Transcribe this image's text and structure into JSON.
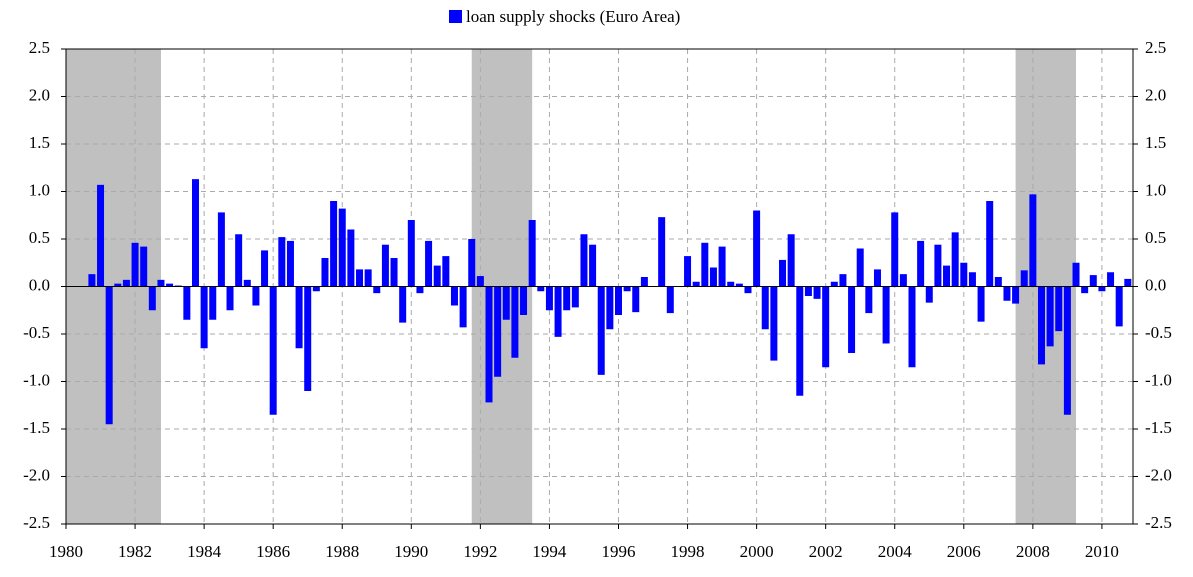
{
  "chart_data": {
    "type": "bar",
    "series": [
      {
        "name": "loan supply shocks (Euro Area)",
        "color": "#0000ff",
        "values": [
          0.13,
          1.07,
          -1.45,
          0.03,
          0.07,
          0.46,
          0.42,
          -0.25,
          0.07,
          0.03,
          0.01,
          -0.35,
          1.13,
          -0.65,
          -0.35,
          0.78,
          -0.25,
          0.55,
          0.07,
          -0.2,
          0.38,
          -1.35,
          0.52,
          0.48,
          -0.65,
          -1.1,
          -0.05,
          0.3,
          0.9,
          0.82,
          0.6,
          0.18,
          0.18,
          -0.07,
          0.44,
          0.3,
          -0.38,
          0.7,
          -0.07,
          0.48,
          0.22,
          0.32,
          -0.2,
          -0.43,
          0.5,
          0.11,
          -1.22,
          -0.95,
          -0.35,
          -0.75,
          -0.3,
          0.7,
          -0.05,
          -0.25,
          -0.53,
          -0.25,
          -0.22,
          0.55,
          0.44,
          -0.93,
          -0.45,
          -0.3,
          -0.05,
          -0.27,
          0.1,
          0.0,
          0.73,
          -0.28,
          0.0,
          0.32,
          0.05,
          0.46,
          0.2,
          0.42,
          0.05,
          0.03,
          -0.07,
          0.8,
          -0.45,
          -0.78,
          0.28,
          0.55,
          -1.15,
          -0.1,
          -0.13,
          -0.85,
          0.05,
          0.13,
          -0.7,
          0.4,
          -0.28,
          0.18,
          -0.6,
          0.78,
          0.13,
          -0.85,
          0.48,
          -0.17,
          0.44,
          0.22,
          0.57,
          0.25,
          0.15,
          -0.37,
          0.9,
          0.1,
          -0.15,
          -0.18,
          0.17,
          0.97,
          -0.82,
          -0.63,
          -0.47,
          -1.35,
          0.25,
          -0.07,
          0.12,
          -0.05,
          0.15,
          -0.42,
          0.08
        ]
      }
    ],
    "x": [
      1980.75,
      1981,
      1981.25,
      1981.5,
      1981.75,
      1982,
      1982.25,
      1982.5,
      1982.75,
      1983,
      1983.25,
      1983.5,
      1983.75,
      1984,
      1984.25,
      1984.5,
      1984.75,
      1985,
      1985.25,
      1985.5,
      1985.75,
      1986,
      1986.25,
      1986.5,
      1986.75,
      1987,
      1987.25,
      1987.5,
      1987.75,
      1988,
      1988.25,
      1988.5,
      1988.75,
      1989,
      1989.25,
      1989.5,
      1989.75,
      1990,
      1990.25,
      1990.5,
      1990.75,
      1991,
      1991.25,
      1991.5,
      1991.75,
      1992,
      1992.25,
      1992.5,
      1992.75,
      1993,
      1993.25,
      1993.5,
      1993.75,
      1994,
      1994.25,
      1994.5,
      1994.75,
      1995,
      1995.25,
      1995.5,
      1995.75,
      1996,
      1996.25,
      1996.5,
      1996.75,
      1997,
      1997.25,
      1997.5,
      1997.75,
      1998,
      1998.25,
      1998.5,
      1998.75,
      1999,
      1999.25,
      1999.5,
      1999.75,
      2000,
      2000.25,
      2000.5,
      2000.75,
      2001,
      2001.25,
      2001.5,
      2001.75,
      2002,
      2002.25,
      2002.5,
      2002.75,
      2003,
      2003.25,
      2003.5,
      2003.75,
      2004,
      2004.25,
      2004.5,
      2004.75,
      2005,
      2005.25,
      2005.5,
      2005.75,
      2006,
      2006.25,
      2006.5,
      2006.75,
      2007,
      2007.25,
      2007.5,
      2007.75,
      2008,
      2008.25,
      2008.5,
      2008.75,
      2009,
      2009.25,
      2009.5,
      2009.75,
      2010,
      2010.25,
      2010.5,
      2010.75
    ],
    "shaded_periods": [
      [
        1980,
        1982.75
      ],
      [
        1991.75,
        1993.5
      ],
      [
        2007.5,
        2009.25
      ]
    ],
    "shade_color": "#c0c0c0",
    "xlim": [
      1980,
      2010.9
    ],
    "xticks": [
      1980,
      1982,
      1984,
      1986,
      1988,
      1990,
      1992,
      1994,
      1996,
      1998,
      2000,
      2002,
      2004,
      2006,
      2008,
      2010
    ],
    "ylim": [
      -2.5,
      2.5
    ],
    "yticks": [
      2.5,
      {
        "value": 2,
        "label": "2.0"
      },
      1.5,
      {
        "value": 1,
        "label": "1.0"
      },
      0.5,
      {
        "value": 0,
        "label": "0.0"
      },
      -0.5,
      {
        "value": -1,
        "label": "-1.0"
      },
      -1.5,
      {
        "value": -2,
        "label": "-2.0"
      },
      -2.5
    ],
    "y2lim": [
      -2.5,
      2.5
    ],
    "y2ticks": [
      2.5,
      {
        "value": 2,
        "label": "2.0"
      },
      1.5,
      {
        "value": 1,
        "label": "1.0"
      },
      0.5,
      {
        "value": 0,
        "label": "0.0"
      },
      -0.5,
      {
        "value": -1,
        "label": "-1.0"
      },
      -1.5,
      {
        "value": -2,
        "label": "-2.0"
      },
      -2.5
    ],
    "grid": true,
    "legend": "top"
  }
}
